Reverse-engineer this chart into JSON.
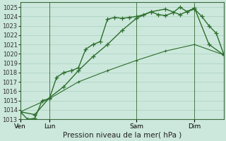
{
  "title": "Pression niveau de la mer( hPa )",
  "bg_color": "#cce8dc",
  "grid_color": "#aacfbf",
  "line_color": "#2d6e2d",
  "ylim": [
    1013,
    1025.5
  ],
  "yticks": [
    1013,
    1014,
    1015,
    1016,
    1017,
    1018,
    1019,
    1020,
    1021,
    1022,
    1023,
    1024,
    1025
  ],
  "day_labels": [
    "Ven",
    "Lun",
    "Sam",
    "Dim"
  ],
  "day_positions": [
    0,
    4,
    16,
    24
  ],
  "xmin": 0,
  "xmax": 28,
  "series1_x": [
    0,
    1,
    2,
    3,
    4,
    5,
    6,
    7,
    8,
    9,
    10,
    11,
    12,
    13,
    14,
    15,
    16,
    17,
    18,
    19,
    20,
    21,
    22,
    23,
    24,
    25,
    26,
    27,
    28
  ],
  "series1_y": [
    1013.8,
    1013.0,
    1013.1,
    1015.0,
    1015.2,
    1017.5,
    1018.0,
    1018.2,
    1018.5,
    1020.5,
    1021.0,
    1021.3,
    1023.7,
    1023.9,
    1023.8,
    1023.9,
    1024.0,
    1024.2,
    1024.5,
    1024.2,
    1024.1,
    1024.4,
    1025.0,
    1024.5,
    1024.8,
    1024.0,
    1023.0,
    1022.2,
    1020.0
  ],
  "series2_x": [
    0,
    2,
    4,
    6,
    8,
    10,
    12,
    14,
    16,
    18,
    20,
    22,
    24,
    26,
    28
  ],
  "series2_y": [
    1013.8,
    1013.5,
    1015.3,
    1016.5,
    1018.2,
    1019.7,
    1021.0,
    1022.5,
    1023.8,
    1024.5,
    1024.8,
    1024.2,
    1024.9,
    1021.0,
    1019.9
  ],
  "series3_x": [
    0,
    4,
    8,
    12,
    16,
    20,
    24,
    28
  ],
  "series3_y": [
    1013.8,
    1015.2,
    1017.0,
    1018.2,
    1019.3,
    1020.3,
    1021.0,
    1019.9
  ],
  "marker_size": 4,
  "line_width": 1.0
}
